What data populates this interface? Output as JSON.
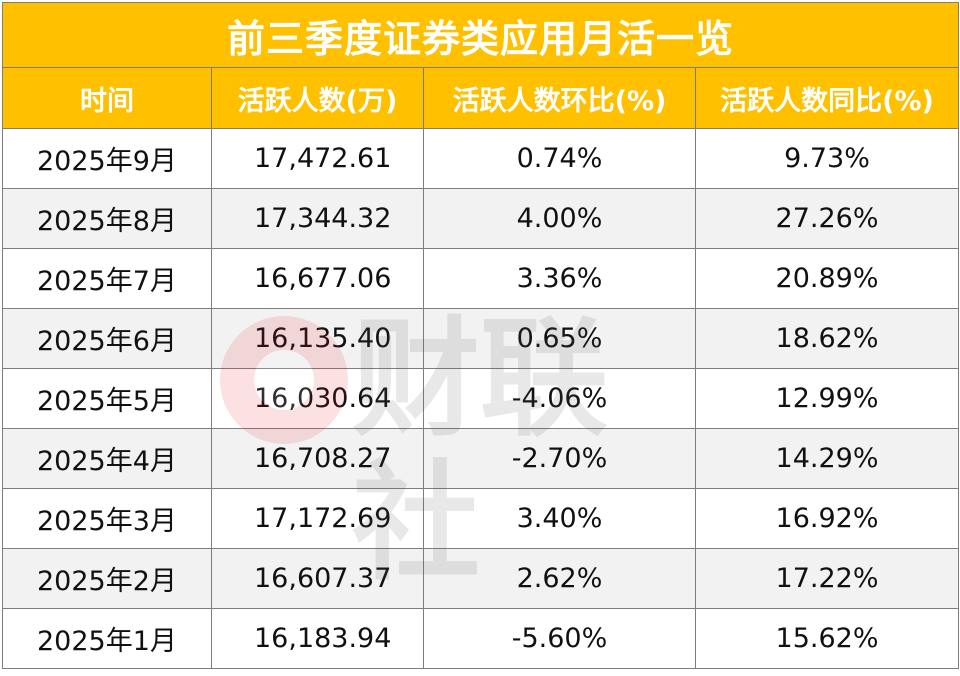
{
  "table": {
    "title": "前三季度证券类应用月活一览",
    "headers": [
      "时间",
      "活跃人数(万)",
      "活跃人数环比(%)",
      "活跃人数同比(%)"
    ],
    "rows": [
      {
        "month": "2025年9月",
        "active": "17,472.61",
        "mom": "0.74%",
        "yoy": "9.73%"
      },
      {
        "month": "2025年8月",
        "active": "17,344.32",
        "mom": "4.00%",
        "yoy": "27.26%"
      },
      {
        "month": "2025年7月",
        "active": "16,677.06",
        "mom": "3.36%",
        "yoy": "20.89%"
      },
      {
        "month": "2025年6月",
        "active": "16,135.40",
        "mom": "0.65%",
        "yoy": "18.62%"
      },
      {
        "month": "2025年5月",
        "active": "16,030.64",
        "mom": "-4.06%",
        "yoy": "12.99%"
      },
      {
        "month": "2025年4月",
        "active": "16,708.27",
        "mom": "-2.70%",
        "yoy": "14.29%"
      },
      {
        "month": "2025年3月",
        "active": "17,172.69",
        "mom": "3.40%",
        "yoy": "16.92%"
      },
      {
        "month": "2025年2月",
        "active": "16,607.37",
        "mom": "2.62%",
        "yoy": "17.22%"
      },
      {
        "month": "2025年1月",
        "active": "16,183.94",
        "mom": "-5.60%",
        "yoy": "15.62%"
      }
    ]
  },
  "watermark": {
    "text": "财联社",
    "color": "#e8202a"
  },
  "colors": {
    "header_bg": "#ffc000",
    "header_text": "#ffffff",
    "alt_row_bg": "#f2f2f2",
    "border": "#7d7d7d"
  }
}
